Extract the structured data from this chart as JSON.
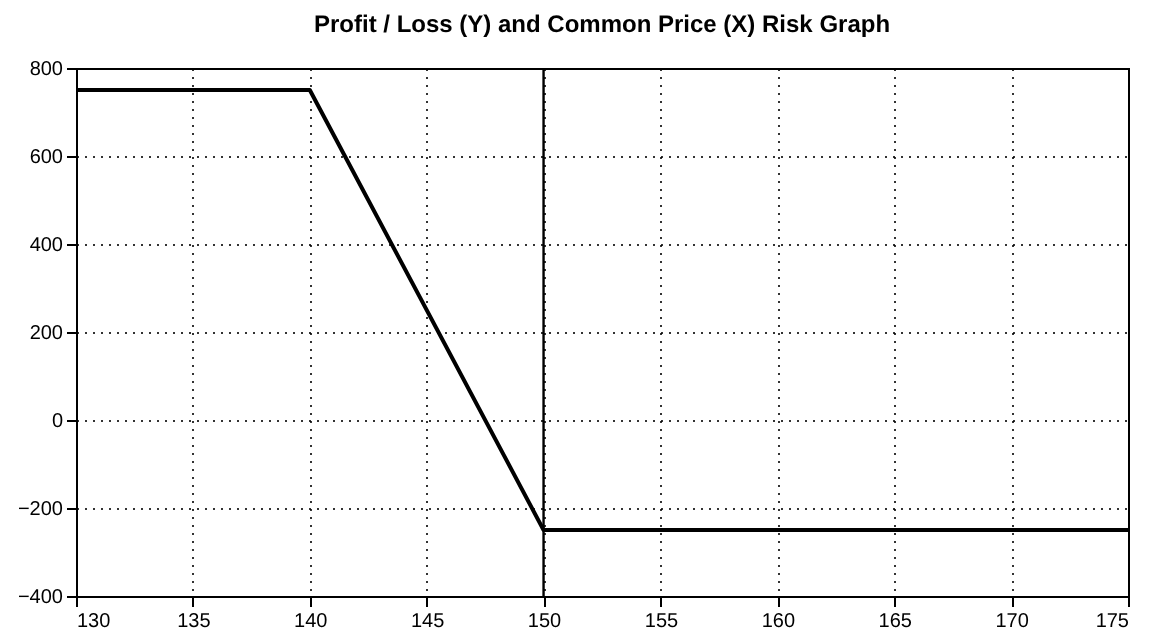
{
  "chart_data": {
    "type": "line",
    "title": "Profit / Loss (Y) and Common Price (X) Risk Graph",
    "x": [
      130,
      140,
      150,
      175
    ],
    "series": [
      {
        "color": "#000000",
        "values": [
          750,
          750,
          -250,
          -250
        ]
      }
    ],
    "xlim": [
      130,
      175
    ],
    "xticks": [
      130,
      135,
      140,
      145,
      150,
      155,
      160,
      165,
      170,
      175
    ],
    "ylim": [
      -400,
      800
    ],
    "yticks": [
      -400,
      -200,
      0,
      200,
      400,
      600,
      800
    ],
    "grid": true,
    "marker": "none",
    "line_style": "solid",
    "ref_lines": [
      {
        "axis": "x",
        "value": 150,
        "color": "#000000",
        "line_style": "solid"
      }
    ]
  }
}
